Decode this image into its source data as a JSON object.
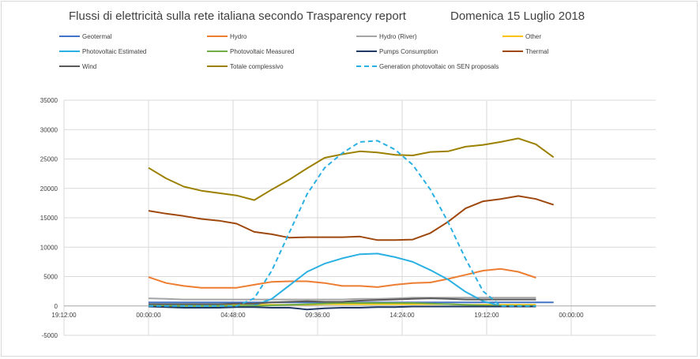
{
  "chart_data": {
    "type": "line",
    "title": "Flussi di elettricità sulla rete italiana secondo Trasparency report",
    "subtitle": "Domenica 15 Luglio 2018",
    "xlabel": "",
    "ylabel": "",
    "ylim": [
      -5000,
      35000
    ],
    "yticks": [
      "35000",
      "30000",
      "25000",
      "20000",
      "15000",
      "10000",
      "5000",
      "0",
      "-5000"
    ],
    "xticks": [
      "19:12:00",
      "00:00:00",
      "04:48:00",
      "09:36:00",
      "14:24:00",
      "19:12:00",
      "00:00:00"
    ],
    "x_hours": [
      0,
      1,
      2,
      3,
      4,
      5,
      6,
      7,
      8,
      9,
      10,
      11,
      12,
      13,
      14,
      15,
      16,
      17,
      18,
      19,
      20,
      21,
      22,
      23
    ],
    "grid": true,
    "legend_position": "top",
    "series": [
      {
        "name": "Geotermal",
        "color": "#4472c4",
        "dash": false,
        "values": [
          600,
          600,
          600,
          600,
          600,
          600,
          600,
          600,
          600,
          600,
          600,
          600,
          600,
          600,
          600,
          600,
          600,
          600,
          600,
          600,
          600,
          600,
          600,
          600
        ]
      },
      {
        "name": "Hydro",
        "color": "#ed7d31",
        "dash": false,
        "values": [
          4900,
          3900,
          3400,
          3100,
          3100,
          3100,
          3600,
          4100,
          4200,
          4200,
          3900,
          3400,
          3400,
          3200,
          3600,
          3900,
          4000,
          4600,
          5300,
          6000,
          6300,
          5800,
          4800,
          null
        ]
      },
      {
        "name": "Hydro (River)",
        "color": "#a5a5a5",
        "dash": false,
        "values": [
          1300,
          1200,
          1100,
          1100,
          1100,
          1100,
          1100,
          1100,
          1100,
          1100,
          1100,
          1100,
          1200,
          1200,
          1300,
          1400,
          1400,
          1400,
          1400,
          1400,
          1400,
          1400,
          1400,
          null
        ]
      },
      {
        "name": "Other",
        "color": "#ffc000",
        "dash": false,
        "values": [
          200,
          200,
          200,
          200,
          200,
          200,
          200,
          200,
          200,
          200,
          300,
          300,
          300,
          300,
          300,
          300,
          300,
          300,
          200,
          200,
          200,
          200,
          200,
          null
        ]
      },
      {
        "name": "Photovoltaic Estimated",
        "color": "#2ab0e3",
        "dash": false,
        "values": [
          0,
          0,
          0,
          0,
          0,
          0,
          100,
          1200,
          3500,
          5800,
          7200,
          8100,
          8800,
          8900,
          8300,
          7500,
          6100,
          4500,
          2400,
          800,
          0,
          0,
          0,
          null
        ]
      },
      {
        "name": "Photovoltaic Measured",
        "color": "#70ad47",
        "dash": false,
        "values": [
          0,
          0,
          0,
          0,
          0,
          0,
          0,
          100,
          200,
          300,
          400,
          500,
          500,
          500,
          500,
          500,
          400,
          300,
          200,
          100,
          0,
          0,
          0,
          null
        ]
      },
      {
        "name": "Pumps Consumption",
        "color": "#1f3864",
        "dash": false,
        "values": [
          -100,
          -200,
          -300,
          -300,
          -300,
          -200,
          -200,
          -300,
          -300,
          -600,
          -400,
          -300,
          -300,
          -200,
          -200,
          -100,
          -100,
          -100,
          -100,
          -100,
          -100,
          -100,
          -100,
          null
        ]
      },
      {
        "name": "Thermal",
        "color": "#9e480e",
        "dash": false,
        "values": [
          16200,
          15700,
          15300,
          14800,
          14500,
          14000,
          12600,
          12200,
          11600,
          11700,
          11700,
          11700,
          11800,
          11200,
          11200,
          11300,
          12400,
          14300,
          16600,
          17800,
          18200,
          18700,
          18200,
          17200
        ]
      },
      {
        "name": "Wind",
        "color": "#595959",
        "dash": false,
        "values": [
          300,
          300,
          300,
          300,
          300,
          400,
          400,
          600,
          700,
          800,
          700,
          700,
          900,
          1000,
          1100,
          1200,
          1300,
          1200,
          1100,
          1100,
          1100,
          1100,
          1100,
          null
        ]
      },
      {
        "name": "Totale complessivo",
        "color": "#9c8000",
        "dash": false,
        "values": [
          23500,
          21700,
          20300,
          19600,
          19200,
          18800,
          18000,
          19800,
          21500,
          23400,
          25200,
          25800,
          26300,
          26100,
          25700,
          25600,
          26200,
          26300,
          27100,
          27400,
          27900,
          28500,
          27500,
          25300
        ]
      },
      {
        "name": "Generation photovoltaic on SEN proposals",
        "color": "#2ab0e3",
        "dash": true,
        "values": [
          0,
          0,
          0,
          0,
          0,
          0,
          1300,
          6000,
          12500,
          19000,
          23500,
          26000,
          27900,
          28100,
          26600,
          24000,
          19800,
          14300,
          8000,
          2500,
          0,
          0,
          0,
          null
        ]
      }
    ]
  }
}
